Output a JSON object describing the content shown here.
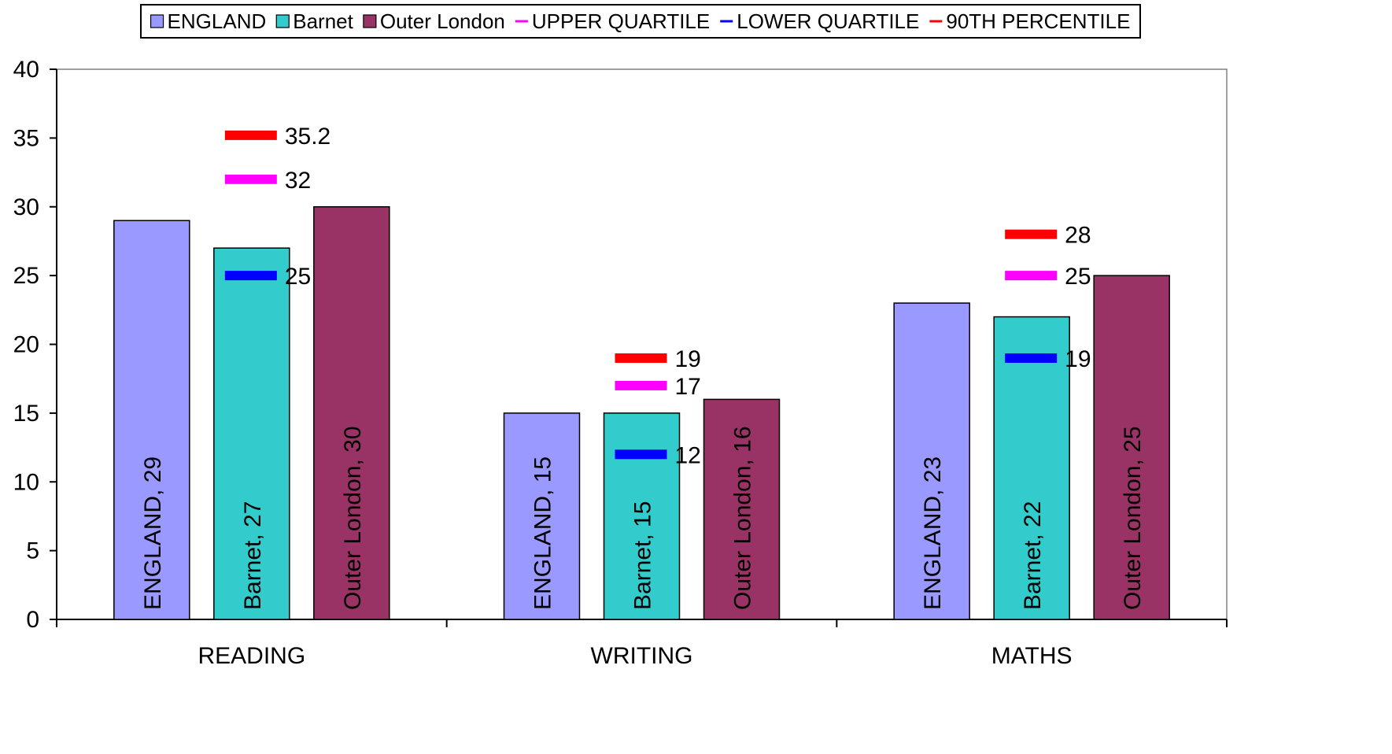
{
  "chart_data": {
    "type": "bar",
    "categories": [
      "READING",
      "WRITING",
      "MATHS"
    ],
    "series": [
      {
        "name": "ENGLAND",
        "values": [
          29,
          15,
          23
        ],
        "color": "#9999FF"
      },
      {
        "name": "Barnet",
        "values": [
          27,
          15,
          22
        ],
        "color": "#33CCCC"
      },
      {
        "name": "Outer London",
        "values": [
          30,
          16,
          25
        ],
        "color": "#993366"
      }
    ],
    "markers": [
      {
        "name": "UPPER QUARTILE",
        "values": [
          32,
          17,
          25
        ],
        "color": "#FF00FF"
      },
      {
        "name": "LOWER QUARTILE",
        "values": [
          25,
          12,
          19
        ],
        "color": "#0000FF"
      },
      {
        "name": "90TH PERCENTILE",
        "values": [
          35.2,
          19,
          28
        ],
        "color": "#FF0000"
      }
    ],
    "bar_labels": [
      [
        "ENGLAND, 29",
        "ENGLAND, 15",
        "ENGLAND, 23"
      ],
      [
        "Barnet, 27",
        "Barnet, 15",
        "Barnet, 22"
      ],
      [
        "Outer London, 30",
        "Outer London, 16",
        "Outer London, 25"
      ]
    ],
    "marker_labels": [
      [
        "32",
        "17",
        "25"
      ],
      [
        "25",
        "12",
        "19"
      ],
      [
        "35.2",
        "19",
        "28"
      ]
    ],
    "yticks": [
      "0",
      "5",
      "10",
      "15",
      "20",
      "25",
      "30",
      "35",
      "40"
    ],
    "ylim": [
      0,
      40
    ],
    "grid": false,
    "legend_position": "top-center",
    "title": "",
    "xlabel": "",
    "ylabel": ""
  }
}
